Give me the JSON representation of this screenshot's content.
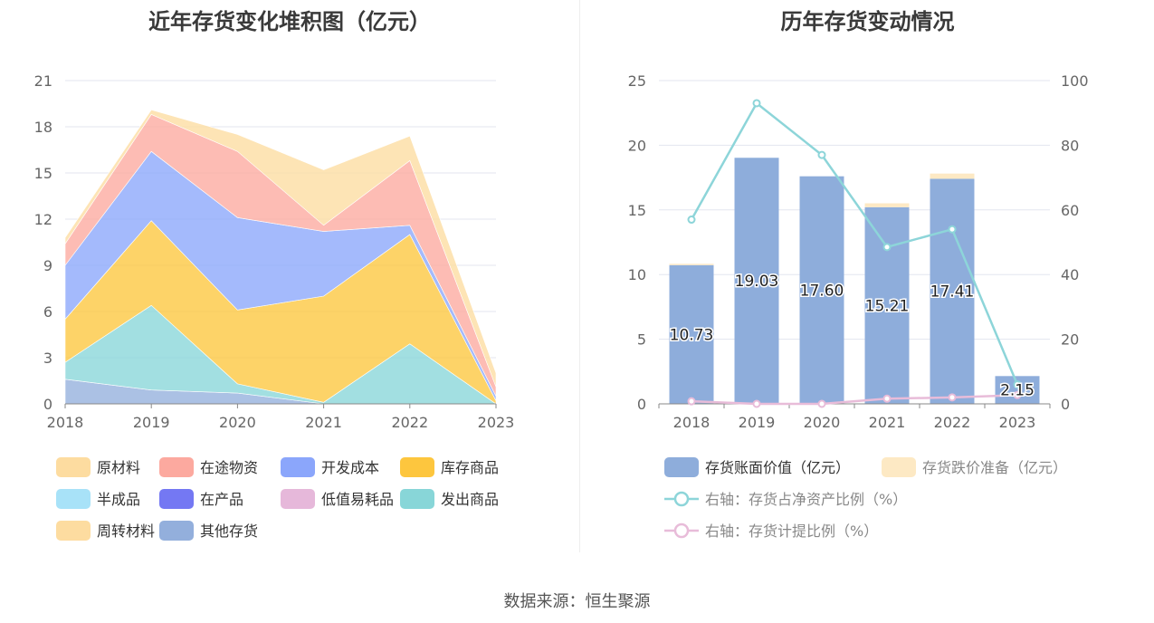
{
  "colors": {
    "原材料": "#fddca0",
    "在途物资": "#fca99f",
    "开发成本": "#8ba6fb",
    "库存商品": "#fdc63e",
    "半成品": "#a8e2f8",
    "在产品": "#7478f3",
    "低值易耗品": "#e6b8da",
    "发出商品": "#88d6d8",
    "周转材料": "#fddca0",
    "其他存货": "#93afdc",
    "存货账面价值": "#8eaddb",
    "存货跌价准备": "#fde9c4",
    "line_ratio": "#8dd5d9",
    "line_provision": "#e8bcd9"
  },
  "footer": {
    "source": "数据来源：恒生聚源"
  },
  "chart_data": [
    {
      "type": "area",
      "title": "近年存货变化堆积图（亿元）",
      "x": [
        "2018",
        "2019",
        "2020",
        "2021",
        "2022",
        "2023"
      ],
      "ylim": [
        0,
        21
      ],
      "yticks": [
        0,
        3,
        6,
        9,
        12,
        15,
        18,
        21
      ],
      "grid": true,
      "legend_position": "bottom",
      "legend": [
        "原材料",
        "在途物资",
        "开发成本",
        "库存商品",
        "半成品",
        "在产品",
        "低值易耗品",
        "发出商品",
        "周转材料",
        "其他存货"
      ],
      "stack_order": [
        "其他存货",
        "发出商品",
        "库存商品",
        "开发成本",
        "在途物资",
        "原材料"
      ],
      "series": [
        {
          "name": "其他存货",
          "values": [
            1.6,
            0.9,
            0.7,
            0.0,
            0.0,
            0.0
          ]
        },
        {
          "name": "发出商品",
          "values": [
            1.1,
            5.5,
            0.6,
            0.1,
            3.9,
            0.0
          ]
        },
        {
          "name": "库存商品",
          "values": [
            2.8,
            5.5,
            4.8,
            6.9,
            7.1,
            0.2
          ]
        },
        {
          "name": "开发成本",
          "values": [
            3.5,
            4.5,
            6.0,
            4.2,
            0.6,
            0.3
          ]
        },
        {
          "name": "在途物资",
          "values": [
            1.4,
            2.4,
            4.3,
            0.4,
            4.2,
            0.6
          ]
        },
        {
          "name": "原材料",
          "values": [
            0.4,
            0.3,
            1.1,
            3.6,
            1.6,
            0.9
          ]
        }
      ]
    },
    {
      "type": "bar",
      "title": "历年存货变动情况",
      "categories": [
        "2018",
        "2019",
        "2020",
        "2021",
        "2022",
        "2023"
      ],
      "ylim": [
        0,
        25
      ],
      "yticks": [
        0,
        5,
        10,
        15,
        20,
        25
      ],
      "y2lim": [
        0,
        100
      ],
      "y2ticks": [
        0,
        20,
        40,
        60,
        80,
        100
      ],
      "grid": true,
      "legend_position": "bottom",
      "series": [
        {
          "name": "存货账面价值（亿元）",
          "type": "bar",
          "values": [
            10.73,
            19.03,
            17.6,
            15.21,
            17.41,
            2.15
          ],
          "labels": [
            "10.73",
            "19.03",
            "17.60",
            "15.21",
            "17.41",
            "2.15"
          ]
        },
        {
          "name": "存货跌价准备（亿元）",
          "type": "bar",
          "values": [
            0.1,
            0.0,
            0.0,
            0.3,
            0.4,
            0.0
          ]
        },
        {
          "name": "右轴：存货占净资产比例（%）",
          "type": "line",
          "axis": "right",
          "values": [
            57,
            93,
            77,
            48.5,
            54,
            6
          ]
        },
        {
          "name": "右轴：存货计提比例（%）",
          "type": "line",
          "axis": "right",
          "values": [
            0.8,
            0,
            0,
            1.6,
            2,
            2.7
          ]
        }
      ]
    }
  ]
}
